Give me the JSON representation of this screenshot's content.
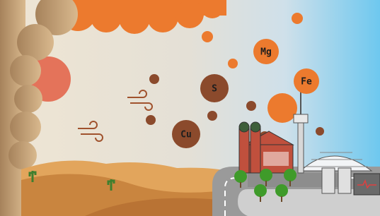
{
  "particles": [
    {
      "label": "Mg"
    },
    {
      "label": "Fe"
    },
    {
      "label": "S"
    },
    {
      "label": "Cu"
    }
  ]
}
